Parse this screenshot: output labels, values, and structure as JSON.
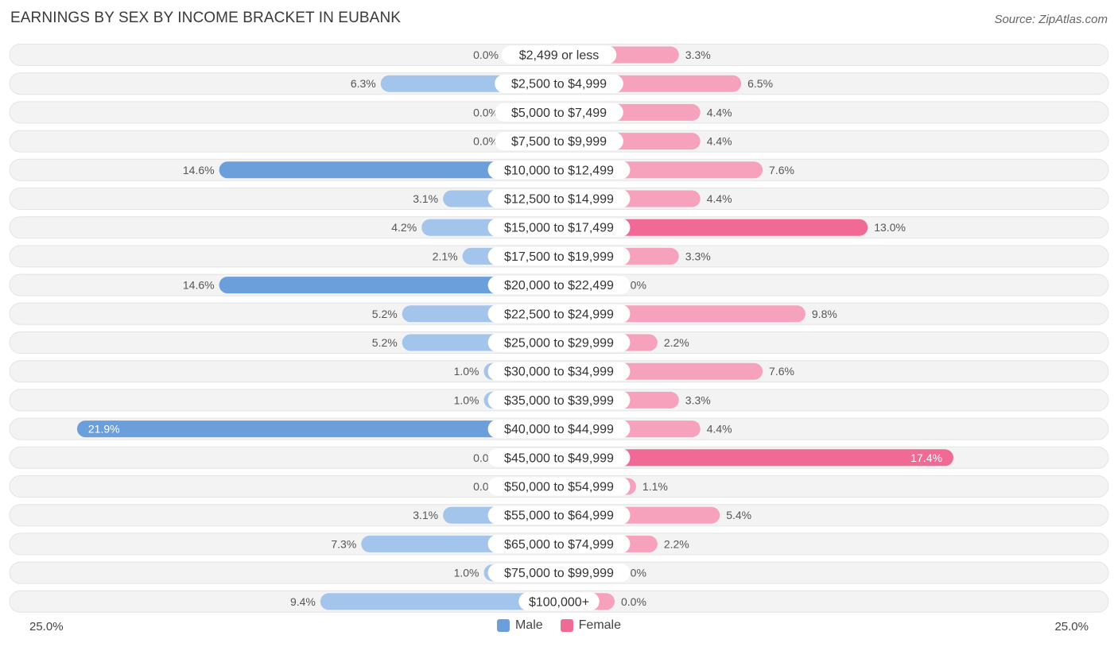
{
  "title": "EARNINGS BY SEX BY INCOME BRACKET IN EUBANK",
  "source": "Source: ZipAtlas.com",
  "colors": {
    "male": "#a3c4eb",
    "male_strong": "#6b9fdc",
    "female": "#f6a2bc",
    "female_strong": "#f06a95",
    "row_bg": "#f2f2f2"
  },
  "chart_data": {
    "type": "bar",
    "orientation": "horizontal-diverging",
    "title": "EARNINGS BY SEX BY INCOME BRACKET IN EUBANK",
    "xlim": [
      -25,
      25
    ],
    "axis_left_label": "25.0%",
    "axis_right_label": "25.0%",
    "categories": [
      "$2,499 or less",
      "$2,500 to $4,999",
      "$5,000 to $7,499",
      "$7,500 to $9,999",
      "$10,000 to $12,499",
      "$12,500 to $14,999",
      "$15,000 to $17,499",
      "$17,500 to $19,999",
      "$20,000 to $22,499",
      "$22,500 to $24,999",
      "$25,000 to $29,999",
      "$30,000 to $34,999",
      "$35,000 to $39,999",
      "$40,000 to $44,999",
      "$45,000 to $49,999",
      "$50,000 to $54,999",
      "$55,000 to $64,999",
      "$65,000 to $74,999",
      "$75,000 to $99,999",
      "$100,000+"
    ],
    "series": [
      {
        "name": "Male",
        "values": [
          0.0,
          6.3,
          0.0,
          0.0,
          14.6,
          3.1,
          4.2,
          2.1,
          14.6,
          5.2,
          5.2,
          1.0,
          1.0,
          21.9,
          0.0,
          0.0,
          3.1,
          7.3,
          1.0,
          9.4
        ],
        "labels": [
          "0.0%",
          "6.3%",
          "0.0%",
          "0.0%",
          "14.6%",
          "3.1%",
          "4.2%",
          "2.1%",
          "14.6%",
          "5.2%",
          "5.2%",
          "1.0%",
          "1.0%",
          "21.9%",
          "0.0%",
          "0.0%",
          "3.1%",
          "7.3%",
          "1.0%",
          "9.4%"
        ]
      },
      {
        "name": "Female",
        "values": [
          3.3,
          6.5,
          4.4,
          4.4,
          7.6,
          4.4,
          13.0,
          3.3,
          0.0,
          9.8,
          2.2,
          7.6,
          3.3,
          4.4,
          17.4,
          1.1,
          5.4,
          2.2,
          0.0,
          0.0
        ],
        "labels": [
          "3.3%",
          "6.5%",
          "4.4%",
          "4.4%",
          "7.6%",
          "4.4%",
          "13.0%",
          "3.3%",
          "0.0%",
          "9.8%",
          "2.2%",
          "7.6%",
          "3.3%",
          "4.4%",
          "17.4%",
          "1.1%",
          "5.4%",
          "2.2%",
          "0.0%",
          "0.0%"
        ]
      }
    ],
    "legend": [
      "Male",
      "Female"
    ],
    "legend_position": "bottom-center"
  }
}
